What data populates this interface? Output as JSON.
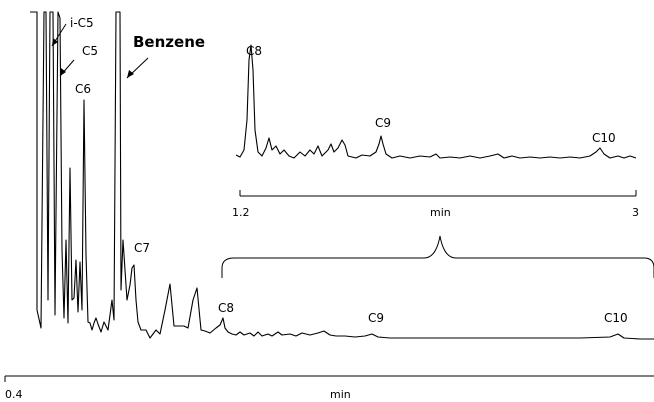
{
  "chart_data": [
    {
      "type": "line",
      "name": "main-chromatogram",
      "xlabel": "min",
      "x_tick_labels": [
        "0.4"
      ],
      "xlim": [
        0.4,
        3.0
      ],
      "trace": [
        [
          0.4,
          0.96
        ],
        [
          0.408,
          0.93
        ],
        [
          0.416,
          0.75
        ],
        [
          0.42,
          0.02
        ],
        [
          0.432,
          0.02
        ],
        [
          0.436,
          0.92
        ],
        [
          0.442,
          0.97
        ],
        [
          0.448,
          0.02
        ],
        [
          0.456,
          0.02
        ],
        [
          0.46,
          0.8
        ],
        [
          0.468,
          0.97
        ],
        [
          0.476,
          0.92
        ],
        [
          0.484,
          0.6
        ],
        [
          0.49,
          0.8
        ],
        [
          0.498,
          0.93
        ],
        [
          0.506,
          0.86
        ],
        [
          0.512,
          0.7
        ],
        [
          0.518,
          0.91
        ],
        [
          0.524,
          0.98
        ],
        [
          0.532,
          0.9
        ],
        [
          0.54,
          0.8
        ],
        [
          0.546,
          0.58
        ],
        [
          0.552,
          0.68
        ],
        [
          0.56,
          0.78
        ],
        [
          0.566,
          0.95
        ],
        [
          0.574,
          0.93
        ],
        [
          0.58,
          0.97
        ],
        [
          0.588,
          0.94
        ],
        [
          0.596,
          0.93
        ],
        [
          0.604,
          0.96
        ],
        [
          0.612,
          0.02
        ],
        [
          0.624,
          0.02
        ],
        [
          0.63,
          0.7
        ],
        [
          0.636,
          0.73
        ],
        [
          0.642,
          0.78
        ],
        [
          0.648,
          0.65
        ],
        [
          0.654,
          0.6
        ],
        [
          0.66,
          0.72
        ],
        [
          0.666,
          0.92
        ],
        [
          0.672,
          0.95
        ],
        [
          0.68,
          0.96
        ],
        [
          0.688,
          0.95
        ],
        [
          0.696,
          0.97
        ],
        [
          0.704,
          0.95
        ],
        [
          0.712,
          0.82
        ],
        [
          0.718,
          0.95
        ],
        [
          0.726,
          0.97
        ],
        [
          0.734,
          0.96
        ],
        [
          0.742,
          0.96
        ],
        [
          0.75,
          0.93
        ],
        [
          0.76,
          0.96
        ],
        [
          0.77,
          0.94
        ],
        [
          0.78,
          0.96
        ],
        [
          0.79,
          0.95
        ],
        [
          0.8,
          0.96
        ],
        [
          0.81,
          0.94
        ],
        [
          0.82,
          0.96
        ],
        [
          0.83,
          0.95
        ],
        [
          0.84,
          0.96
        ],
        [
          0.85,
          0.94
        ],
        [
          0.86,
          0.96
        ],
        [
          0.87,
          0.95
        ],
        [
          0.88,
          0.96
        ],
        [
          0.89,
          0.95
        ],
        [
          0.9,
          0.96
        ],
        [
          0.92,
          0.96
        ],
        [
          0.94,
          0.955
        ],
        [
          0.96,
          0.96
        ],
        [
          0.98,
          0.955
        ],
        [
          1.0,
          0.96
        ],
        [
          1.05,
          0.95
        ],
        [
          1.1,
          0.96
        ],
        [
          1.15,
          0.955
        ],
        [
          1.2,
          0.96
        ],
        [
          1.23,
          0.95
        ],
        [
          1.25,
          0.93
        ],
        [
          1.27,
          0.96
        ],
        [
          1.3,
          0.955
        ],
        [
          1.35,
          0.96
        ],
        [
          1.4,
          0.96
        ],
        [
          1.5,
          0.96
        ],
        [
          1.6,
          0.96
        ],
        [
          1.7,
          0.96
        ],
        [
          1.8,
          0.96
        ],
        [
          1.9,
          0.96
        ],
        [
          2.0,
          0.96
        ],
        [
          2.1,
          0.96
        ],
        [
          2.2,
          0.96
        ],
        [
          2.3,
          0.96
        ],
        [
          2.4,
          0.96
        ],
        [
          2.5,
          0.96
        ],
        [
          2.6,
          0.96
        ],
        [
          2.7,
          0.95
        ],
        [
          2.75,
          0.94
        ],
        [
          2.8,
          0.96
        ],
        [
          2.9,
          0.96
        ],
        [
          3.0,
          0.96
        ]
      ],
      "annotations": [
        "i-C5",
        "C5",
        "C6",
        "Benzene",
        "C7",
        "C8",
        "C9",
        "C10"
      ]
    },
    {
      "type": "line",
      "name": "inset-chromatogram",
      "xlabel": "min",
      "x_tick_labels": [
        "1.2",
        "3"
      ],
      "xlim": [
        1.2,
        3.0
      ],
      "trace": [
        [
          1.2,
          0.05
        ],
        [
          1.22,
          0.05
        ],
        [
          1.24,
          0.9
        ],
        [
          1.26,
          0.2
        ],
        [
          1.28,
          0.1
        ],
        [
          1.3,
          0.22
        ],
        [
          1.32,
          0.1
        ],
        [
          1.34,
          0.08
        ],
        [
          1.38,
          0.12
        ],
        [
          1.4,
          0.06
        ],
        [
          1.44,
          0.2
        ],
        [
          1.46,
          0.08
        ],
        [
          1.5,
          0.2
        ],
        [
          1.52,
          0.1
        ],
        [
          1.56,
          0.3
        ],
        [
          1.58,
          0.1
        ],
        [
          1.62,
          0.05
        ],
        [
          1.68,
          0.08
        ],
        [
          1.7,
          0.3
        ],
        [
          1.72,
          0.08
        ],
        [
          1.8,
          0.05
        ],
        [
          1.9,
          0.06
        ],
        [
          2.0,
          0.05
        ],
        [
          2.1,
          0.04
        ],
        [
          2.2,
          0.05
        ],
        [
          2.3,
          0.04
        ],
        [
          2.4,
          0.05
        ],
        [
          2.5,
          0.04
        ],
        [
          2.6,
          0.05
        ],
        [
          2.7,
          0.04
        ],
        [
          2.8,
          0.08
        ],
        [
          2.82,
          0.14
        ],
        [
          2.86,
          0.06
        ],
        [
          2.92,
          0.04
        ],
        [
          3.0,
          0.04
        ]
      ]
    }
  ],
  "labels": {
    "i_c5": "i-C5",
    "c5": "C5",
    "c6": "C6",
    "benzene": "Benzene",
    "c7": "C7",
    "c8_main": "C8",
    "c9_main": "C9",
    "c10_main": "C10",
    "c8_inset": "C8",
    "c9_inset": "C9",
    "c10_inset": "C10",
    "main_x_start": "0.4",
    "main_x_unit": "min",
    "inset_x_start": "1.2",
    "inset_x_unit": "min",
    "inset_x_end": "3"
  }
}
